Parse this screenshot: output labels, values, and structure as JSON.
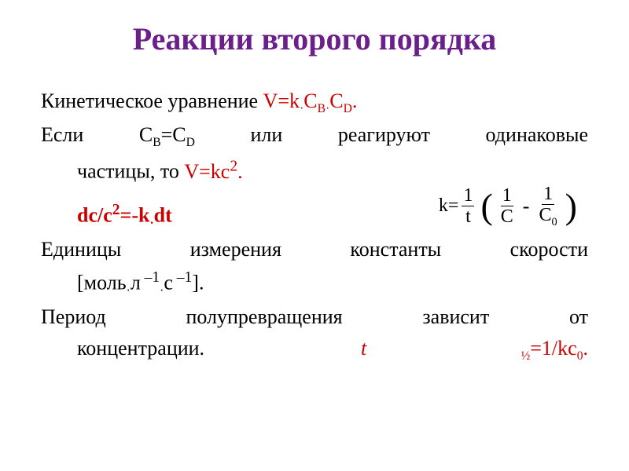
{
  "title": "Реакции второго порядка",
  "line1_a": "Кинетическое уравнение ",
  "line1_b": "V=k",
  "line1_dot1": "·",
  "line1_cb_c": "С",
  "line1_cb_b": "В",
  "line1_dot2": "·",
  "line1_cd_c": "С",
  "line1_cd_d": "D",
  "line1_period": ".",
  "line2_a": "Если С",
  "line2_b": "В",
  "line2_eq": "=С",
  "line2_d": "D",
  "line2_mid": " или реагируют одинаковые",
  "line2b_a": "частицы, то ",
  "line2b_v": "V=kc",
  "line2b_sq": "2",
  "line2b_period": ".",
  "formula_dc": "dc/c",
  "formula_dc_sq": "2",
  "formula_dc_tail": "=-k",
  "formula_dc_dot": "·",
  "formula_dc_dt": "dt",
  "k_eq": "k=",
  "k_num1": "1",
  "k_den1": "t",
  "k_num2": "1",
  "k_den2": "C",
  "k_num3": "1",
  "k_den3_c": "C",
  "k_den3_0": "0",
  "line4_a": "Единицы измерения константы скорости",
  "line4b_a": "[моль",
  "line4b_dot1": "·",
  "line4b_l": "л",
  "line4b_exp1": " –1",
  "line4b_dot2": "·",
  "line4b_s": "с",
  "line4b_exp2": " –1",
  "line4b_close": "].",
  "line5_a": "Период полупревращения зависит от",
  "line5b_a": "концентрации.",
  "line5b_t": "t",
  "line5b_half": " ½",
  "line5b_eq": "=1/kc",
  "line5b_zero": "0",
  "line5b_period": "."
}
